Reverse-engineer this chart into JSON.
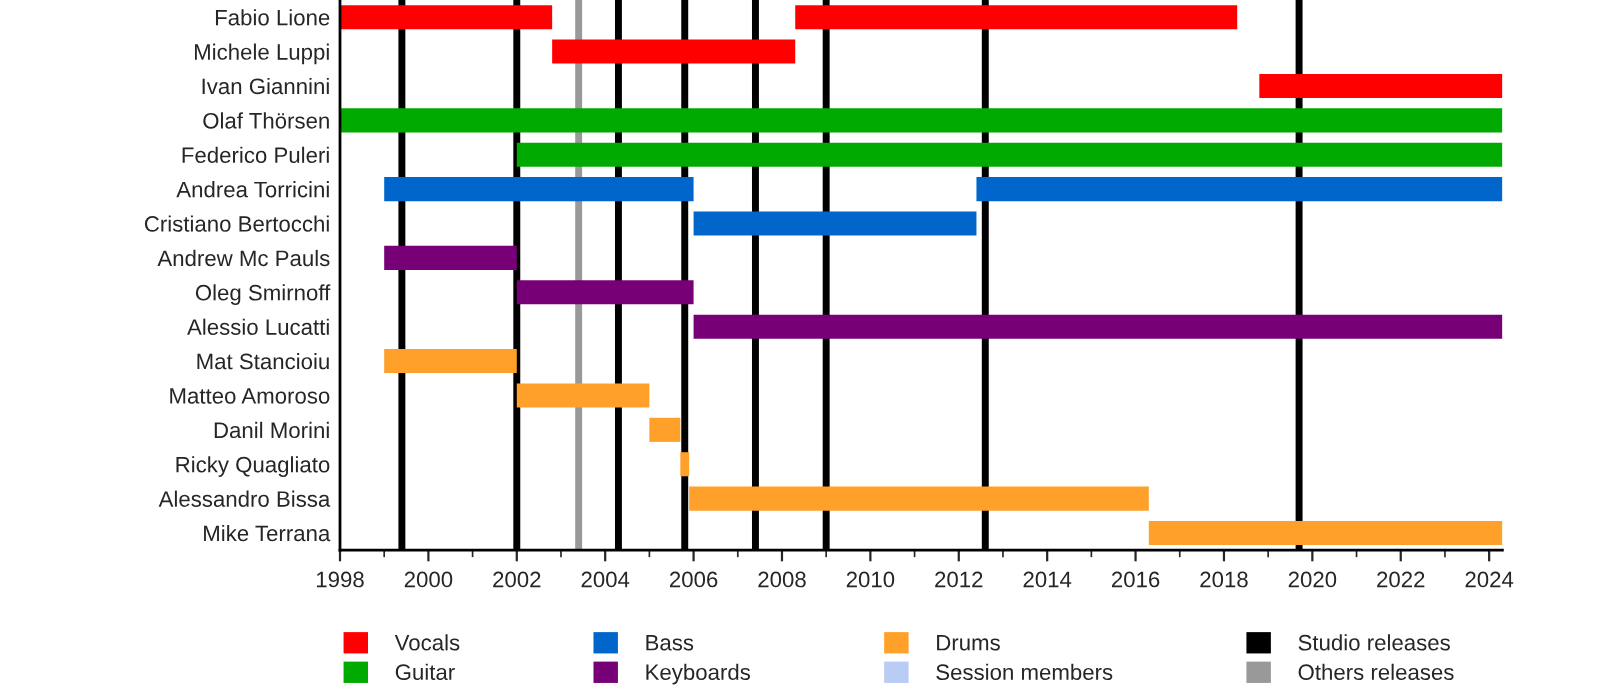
{
  "chart_data": {
    "type": "bar",
    "orientation": "horizontal",
    "categories": [
      "Fabio Lione",
      "Michele Luppi",
      "Ivan Giannini",
      "Olaf Thörsen",
      "Federico Puleri",
      "Andrea Torricini",
      "Cristiano Bertocchi",
      "Andrew Mc Pauls",
      "Oleg Smirnoff",
      "Alessio Lucatti",
      "Mat Stancioiu",
      "Matteo Amoroso",
      "Danil Morini",
      "Ricky Quagliato",
      "Alessandro Bissa",
      "Mike Terrana"
    ],
    "series": [
      {
        "name": "Vocals",
        "color": "#ff0000",
        "base": [
          1998.0,
          2002.8,
          2018.8,
          null,
          null,
          null,
          null,
          null,
          null,
          null,
          null,
          null,
          null,
          null,
          null,
          null
        ],
        "values": [
          4.8,
          5.5,
          5.5,
          null,
          null,
          null,
          null,
          null,
          null,
          null,
          null,
          null,
          null,
          null,
          null,
          null
        ]
      },
      {
        "color": "#ff0000",
        "base": [
          2008.3,
          null,
          null,
          null,
          null,
          null,
          null,
          null,
          null,
          null,
          null,
          null,
          null,
          null,
          null,
          null
        ],
        "values": [
          10.0,
          null,
          null,
          null,
          null,
          null,
          null,
          null,
          null,
          null,
          null,
          null,
          null,
          null,
          null,
          null
        ]
      },
      {
        "name": "Guitar",
        "color": "#00aa00",
        "base": [
          null,
          null,
          null,
          1998.0,
          2002.0,
          null,
          null,
          null,
          null,
          null,
          null,
          null,
          null,
          null,
          null,
          null
        ],
        "values": [
          null,
          null,
          null,
          26.3,
          22.3,
          null,
          null,
          null,
          null,
          null,
          null,
          null,
          null,
          null,
          null,
          null
        ]
      },
      {
        "name": "Bass",
        "color": "#0066cc",
        "base": [
          null,
          null,
          null,
          null,
          null,
          1999.0,
          2006.0,
          null,
          null,
          null,
          null,
          null,
          null,
          null,
          null,
          null
        ],
        "values": [
          null,
          null,
          null,
          null,
          null,
          7.0,
          6.4,
          null,
          null,
          null,
          null,
          null,
          null,
          null,
          null,
          null
        ]
      },
      {
        "color": "#0066cc",
        "base": [
          null,
          null,
          null,
          null,
          null,
          2012.4,
          null,
          null,
          null,
          null,
          null,
          null,
          null,
          null,
          null,
          null
        ],
        "values": [
          null,
          null,
          null,
          null,
          null,
          11.9,
          null,
          null,
          null,
          null,
          null,
          null,
          null,
          null,
          null,
          null
        ]
      },
      {
        "name": "Keyboards",
        "color": "#770077",
        "base": [
          null,
          null,
          null,
          null,
          null,
          null,
          null,
          1999.0,
          2002.0,
          2006.0,
          null,
          null,
          null,
          null,
          null,
          null
        ],
        "values": [
          null,
          null,
          null,
          null,
          null,
          null,
          null,
          3.0,
          4.0,
          18.3,
          null,
          null,
          null,
          null,
          null,
          null
        ]
      },
      {
        "name": "Drums",
        "color": "#ffa02a",
        "base": [
          null,
          null,
          null,
          null,
          null,
          null,
          null,
          null,
          null,
          null,
          1999.0,
          2002.0,
          2005.0,
          2005.7,
          2005.9,
          2016.3
        ],
        "values": [
          null,
          null,
          null,
          null,
          null,
          null,
          null,
          null,
          null,
          null,
          3.0,
          3.0,
          0.7,
          0.2,
          10.4,
          8.0
        ]
      },
      {
        "name": "Session members",
        "color": "#b8ccf4",
        "base": [
          null,
          null,
          null,
          null,
          null,
          null,
          null,
          null,
          null,
          null,
          null,
          null,
          null,
          null,
          null,
          null
        ],
        "values": [
          null,
          null,
          null,
          null,
          null,
          null,
          null,
          null,
          null,
          null,
          null,
          null,
          null,
          null,
          null,
          null
        ]
      }
    ],
    "ref_lines": [
      {
        "axis": "x",
        "value": 1999.4,
        "label": "Studio releases",
        "color": "#000000"
      },
      {
        "axis": "x",
        "value": 2002.0,
        "color": "#000000"
      },
      {
        "axis": "x",
        "value": 2003.4,
        "label": "Others releases",
        "color": "#999999"
      },
      {
        "axis": "x",
        "value": 2004.3,
        "color": "#000000"
      },
      {
        "axis": "x",
        "value": 2005.8,
        "color": "#000000"
      },
      {
        "axis": "x",
        "value": 2007.4,
        "color": "#000000"
      },
      {
        "axis": "x",
        "value": 2009.0,
        "color": "#000000"
      },
      {
        "axis": "x",
        "value": 2012.6,
        "color": "#000000"
      },
      {
        "axis": "x",
        "value": 2019.7,
        "color": "#000000"
      }
    ],
    "xlim": [
      1998,
      2024.3
    ],
    "xticks": [
      1998,
      2000,
      2002,
      2004,
      2006,
      2008,
      2010,
      2012,
      2014,
      2016,
      2018,
      2020,
      2022,
      2024
    ],
    "grid": false,
    "legend": "bottom"
  }
}
